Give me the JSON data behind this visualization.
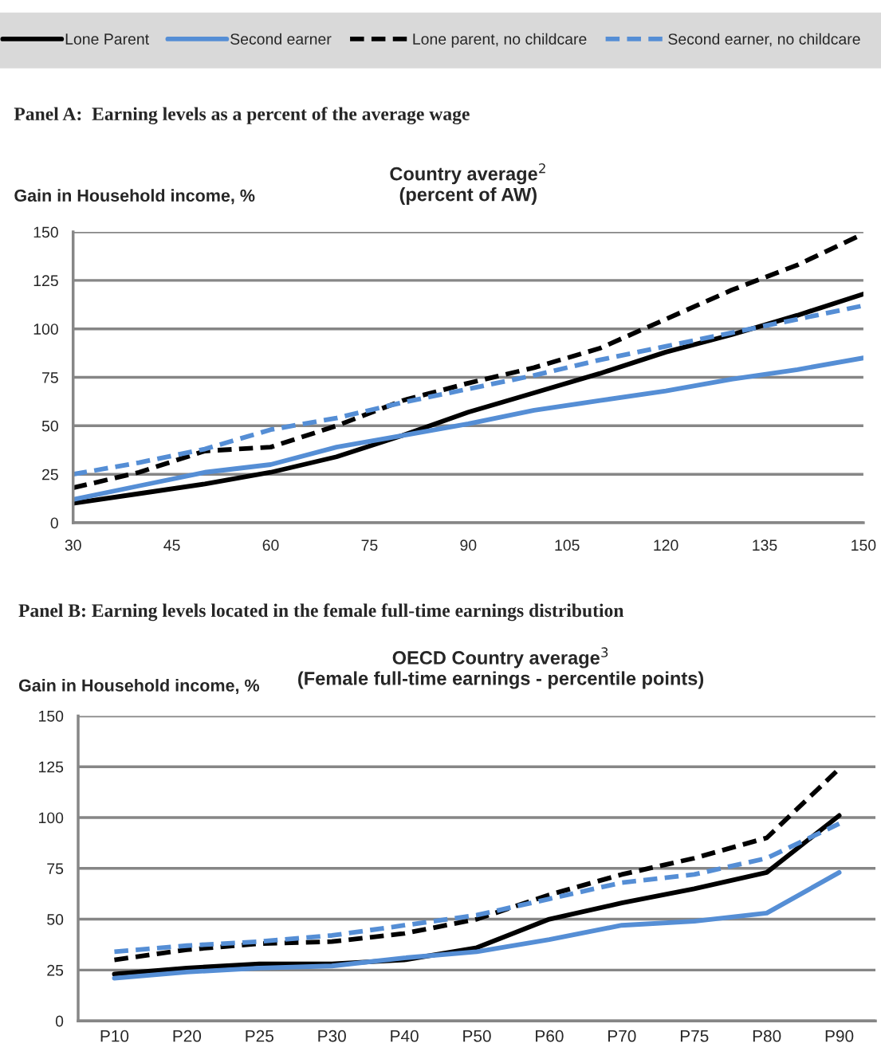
{
  "chart_data": [
    {
      "type": "line",
      "title": "Country average$^{2}$\n(percent of AW)",
      "ylabel": "Gain in Household income, %",
      "annotations": [
        "Panel A:  Earning levels as a percent of the average wage"
      ],
      "x": [
        30,
        40,
        50,
        60,
        70,
        80,
        90,
        100,
        110,
        120,
        130,
        140,
        150
      ],
      "xlim": [
        30,
        150
      ],
      "xticks": [
        30,
        45,
        60,
        75,
        90,
        105,
        120,
        135,
        150
      ],
      "ylim": [
        0,
        150
      ],
      "yticks": [
        0,
        25,
        50,
        75,
        100,
        125,
        150
      ],
      "grid": "y",
      "legend": "top",
      "marker": "none",
      "series": [
        {
          "name": "Lone Parent",
          "color": "#000000",
          "line_style": "solid",
          "values": [
            10,
            15,
            20,
            26,
            34,
            45,
            57,
            67,
            77,
            88,
            97,
            107,
            118
          ]
        },
        {
          "name": "Second earner",
          "color": "#558ed5",
          "line_style": "solid",
          "values": [
            12,
            19,
            26,
            30,
            39,
            45,
            51,
            58,
            63,
            68,
            74,
            79,
            85
          ]
        },
        {
          "name": "Lone parent, no childcare",
          "color": "#000000",
          "line_style": "dashed",
          "values": [
            18,
            26,
            37,
            39,
            50,
            63,
            72,
            80,
            90,
            105,
            120,
            133,
            149
          ]
        },
        {
          "name": "Second earner, no childcare",
          "color": "#558ed5",
          "line_style": "dashed",
          "values": [
            25,
            31,
            38,
            48,
            54,
            62,
            69,
            76,
            84,
            91,
            98,
            105,
            112
          ]
        }
      ]
    },
    {
      "type": "line",
      "title": "OECD Country average$^{3}$\n(Female full-time earnings - percentile points)",
      "ylabel": "Gain in Household income, %",
      "annotations": [
        "Panel B: Earning levels located in the female full-time earnings distribution"
      ],
      "categories": [
        "P10",
        "P20",
        "P25",
        "P30",
        "P40",
        "P50",
        "P60",
        "P70",
        "P75",
        "P80",
        "P90"
      ],
      "ylim": [
        0,
        150
      ],
      "yticks": [
        0,
        25,
        50,
        75,
        100,
        125,
        150
      ],
      "grid": "y",
      "marker": "none",
      "series": [
        {
          "color": "#000000",
          "line_style": "solid",
          "values": [
            23,
            26,
            28,
            28,
            30,
            36,
            50,
            58,
            65,
            73,
            101
          ]
        },
        {
          "color": "#558ed5",
          "line_style": "solid",
          "values": [
            21,
            24,
            26,
            27,
            31,
            34,
            40,
            47,
            49,
            53,
            73
          ]
        },
        {
          "color": "#000000",
          "line_style": "dashed",
          "values": [
            30,
            35,
            38,
            39,
            43,
            50,
            62,
            72,
            80,
            90,
            124
          ]
        },
        {
          "color": "#558ed5",
          "line_style": "dashed",
          "values": [
            34,
            37,
            39,
            42,
            47,
            52,
            60,
            68,
            72,
            80,
            97
          ]
        }
      ]
    }
  ]
}
